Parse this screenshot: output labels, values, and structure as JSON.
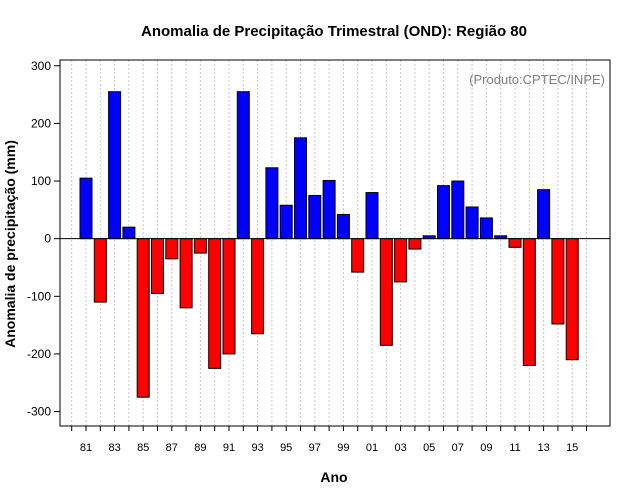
{
  "chart_data": {
    "type": "bar",
    "title": "Anomalia de Precipitação Trimestral (OND): Região 80",
    "xlabel": "Ano",
    "ylabel": "Anomalia de precipitação (mm)",
    "annotation": "(Produto:CPTEC/INPE)",
    "ylim": [
      -325,
      310
    ],
    "yticks": [
      300,
      200,
      100,
      0,
      -100,
      -200,
      -300
    ],
    "ytick_labels": [
      "300",
      "200",
      "100",
      "0",
      "-100",
      "-200",
      "-300"
    ],
    "grid": "vertical dotted",
    "positive_color": "#0000ff",
    "negative_color": "#ff0000",
    "categories": [
      "81",
      "82",
      "83",
      "84",
      "85",
      "86",
      "87",
      "88",
      "89",
      "90",
      "91",
      "92",
      "93",
      "94",
      "95",
      "96",
      "97",
      "98",
      "99",
      "00",
      "01",
      "02",
      "03",
      "04",
      "05",
      "06",
      "07",
      "08",
      "09",
      "10",
      "11",
      "12",
      "13",
      "14",
      "15"
    ],
    "xtick_labels": [
      "81",
      "83",
      "85",
      "87",
      "89",
      "91",
      "93",
      "95",
      "97",
      "99",
      "01",
      "03",
      "05",
      "07",
      "09",
      "11",
      "13",
      "15"
    ],
    "values": [
      105,
      -110,
      255,
      20,
      -275,
      -95,
      -35,
      -120,
      -25,
      -225,
      -200,
      255,
      -165,
      123,
      58,
      175,
      75,
      101,
      42,
      -58,
      80,
      -185,
      -75,
      -18,
      5,
      92,
      100,
      55,
      36,
      5,
      -15,
      -220,
      85,
      -148,
      -210
    ]
  }
}
